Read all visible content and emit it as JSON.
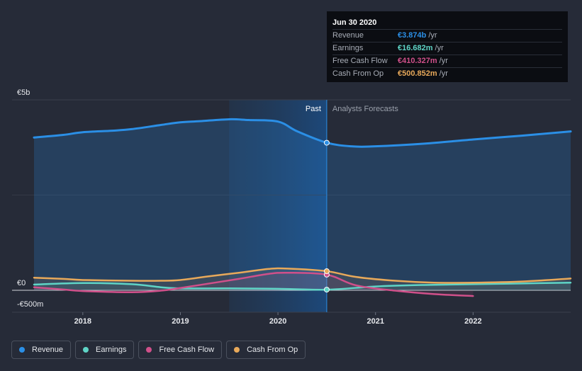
{
  "chart_data": {
    "type": "line",
    "title": "",
    "xlabel": "",
    "ylabel": "",
    "y_tick_labels": [
      "€5b",
      "€0",
      "-€500m"
    ],
    "x_tick_labels": [
      "2018",
      "2019",
      "2020",
      "2021",
      "2022"
    ],
    "ylim": [
      -500,
      5000
    ],
    "xlim": [
      2017.5,
      2023.0
    ],
    "divider_x": 2020.5,
    "past_label": "Past",
    "forecast_label": "Analysts Forecasts",
    "series": [
      {
        "name": "Revenue",
        "color": "#2b8fe6",
        "x": [
          2017.5,
          2017.8,
          2018.0,
          2018.3,
          2018.5,
          2018.8,
          2019.0,
          2019.2,
          2019.5,
          2019.7,
          2020.0,
          2020.2,
          2020.5,
          2020.75,
          2021.0,
          2021.5,
          2022.0,
          2022.5,
          2023.0
        ],
        "values": [
          4010,
          4080,
          4150,
          4190,
          4230,
          4340,
          4410,
          4440,
          4490,
          4470,
          4430,
          4170,
          3874,
          3780,
          3780,
          3850,
          3960,
          4060,
          4170
        ]
      },
      {
        "name": "Earnings",
        "color": "#5fd4c6",
        "x": [
          2017.5,
          2018.0,
          2018.5,
          2018.8,
          2019.0,
          2019.5,
          2020.0,
          2020.5,
          2021.0,
          2021.5,
          2022.0,
          2022.5,
          2023.0
        ],
        "values": [
          150,
          190,
          160,
          80,
          50,
          50,
          40,
          16.682,
          100,
          140,
          160,
          180,
          200
        ]
      },
      {
        "name": "Free Cash Flow",
        "color": "#d0508a",
        "x": [
          2017.5,
          2017.8,
          2018.0,
          2018.5,
          2018.8,
          2019.0,
          2019.3,
          2019.6,
          2019.9,
          2020.1,
          2020.5,
          2020.8,
          2021.2,
          2021.6,
          2022.0
        ],
        "values": [
          80,
          20,
          -20,
          -50,
          -10,
          60,
          180,
          300,
          430,
          460,
          410.327,
          130,
          -10,
          -100,
          -150
        ]
      },
      {
        "name": "Cash From Op",
        "color": "#e8a95a",
        "x": [
          2017.5,
          2017.8,
          2018.0,
          2018.5,
          2018.8,
          2019.0,
          2019.3,
          2019.6,
          2019.9,
          2020.1,
          2020.5,
          2020.8,
          2021.2,
          2021.6,
          2022.0,
          2022.5,
          2023.0
        ],
        "values": [
          330,
          300,
          270,
          250,
          250,
          270,
          370,
          460,
          560,
          570,
          500.852,
          350,
          250,
          200,
          200,
          230,
          310
        ]
      }
    ]
  },
  "tooltip": {
    "date": "Jun 30 2020",
    "rows": [
      {
        "name": "Revenue",
        "value": "€3.874b",
        "unit": "/yr",
        "color": "#2b8fe6"
      },
      {
        "name": "Earnings",
        "value": "€16.682m",
        "unit": "/yr",
        "color": "#5fd4c6"
      },
      {
        "name": "Free Cash Flow",
        "value": "€410.327m",
        "unit": "/yr",
        "color": "#d0508a"
      },
      {
        "name": "Cash From Op",
        "value": "€500.852m",
        "unit": "/yr",
        "color": "#e8a95a"
      }
    ]
  },
  "legend": [
    {
      "label": "Revenue",
      "color": "#2b8fe6"
    },
    {
      "label": "Earnings",
      "color": "#5fd4c6"
    },
    {
      "label": "Free Cash Flow",
      "color": "#d0508a"
    },
    {
      "label": "Cash From Op",
      "color": "#e8a95a"
    }
  ]
}
